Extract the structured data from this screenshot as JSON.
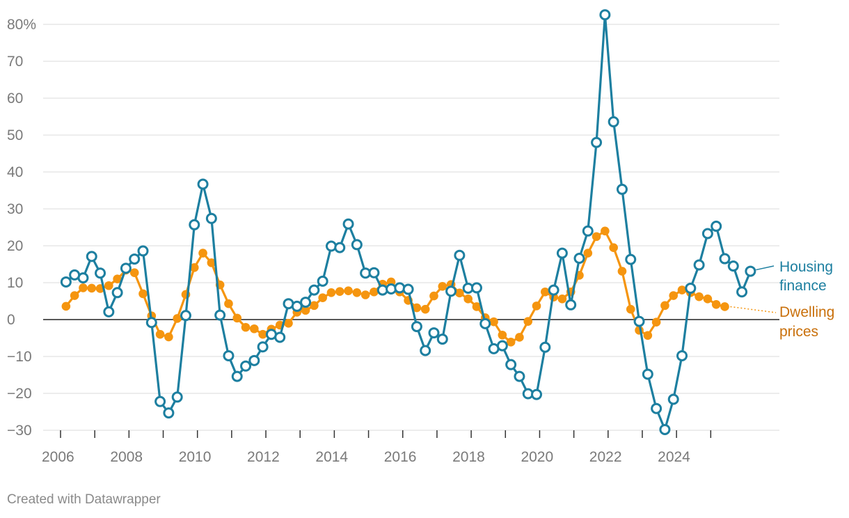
{
  "chart_data": {
    "type": "line",
    "title": "",
    "xlabel": "",
    "ylabel": "",
    "ylim": [
      -30,
      80
    ],
    "xlim": [
      2006,
      2026.6
    ],
    "y_ticks": [
      80,
      70,
      60,
      50,
      40,
      30,
      20,
      10,
      0,
      -10,
      -20,
      -30
    ],
    "y_tick_labels": [
      "80%",
      "70",
      "60",
      "50",
      "40",
      "30",
      "20",
      "10",
      "0",
      "−10",
      "−20",
      "−30"
    ],
    "x_tick_positions": [
      2006,
      2007,
      2008,
      2009,
      2010,
      2011,
      2012,
      2013,
      2014,
      2015,
      2016,
      2017,
      2018,
      2019,
      2020,
      2021,
      2022,
      2023,
      2024,
      2025
    ],
    "x_tick_labels": [
      "2006",
      "2008",
      "2010",
      "2012",
      "2014",
      "2016",
      "2018",
      "2020",
      "2022",
      "2024"
    ],
    "x_tick_label_years": [
      2006,
      2008,
      2010,
      2012,
      2014,
      2016,
      2018,
      2020,
      2022,
      2024
    ],
    "grid": true,
    "series": [
      {
        "name": "Housing finance",
        "label_lines": [
          "Housing",
          "finance"
        ],
        "color": "#1d7fa0",
        "marker": "hollow-circle",
        "x": [
          2006.16,
          2006.41,
          2006.66,
          2006.91,
          2007.16,
          2007.41,
          2007.66,
          2007.91,
          2008.16,
          2008.41,
          2008.66,
          2008.91,
          2009.16,
          2009.41,
          2009.66,
          2009.91,
          2010.16,
          2010.41,
          2010.66,
          2010.91,
          2011.16,
          2011.41,
          2011.66,
          2011.91,
          2012.16,
          2012.41,
          2012.66,
          2012.91,
          2013.16,
          2013.41,
          2013.66,
          2013.91,
          2014.16,
          2014.41,
          2014.66,
          2014.91,
          2015.16,
          2015.41,
          2015.66,
          2015.91,
          2016.16,
          2016.41,
          2016.66,
          2016.91,
          2017.16,
          2017.41,
          2017.66,
          2017.91,
          2018.16,
          2018.41,
          2018.66,
          2018.91,
          2019.16,
          2019.41,
          2019.66,
          2019.91,
          2020.16,
          2020.41,
          2020.66,
          2020.91,
          2021.16,
          2021.41,
          2021.66,
          2021.91,
          2022.16,
          2022.41,
          2022.66,
          2022.91,
          2023.16,
          2023.41,
          2023.66,
          2023.91,
          2024.16,
          2024.41,
          2024.66,
          2024.91,
          2025.16,
          2025.41,
          2025.66,
          2025.91,
          2026.16
        ],
        "values": [
          10.2,
          12.1,
          11.3,
          17.1,
          12.6,
          2.1,
          7.3,
          13.9,
          16.4,
          18.6,
          -0.8,
          -22.2,
          -25.3,
          -21.0,
          1.1,
          25.7,
          36.7,
          27.4,
          1.2,
          -9.8,
          -15.4,
          -12.6,
          -11.1,
          -7.4,
          -4.0,
          -4.8,
          4.3,
          3.6,
          4.7,
          8.0,
          10.4,
          19.9,
          19.5,
          25.9,
          20.3,
          12.6,
          12.7,
          8.0,
          8.3,
          8.6,
          8.2,
          -1.9,
          -8.4,
          -3.6,
          -5.3,
          7.7,
          17.4,
          8.5,
          8.6,
          -1.1,
          -7.9,
          -7.1,
          -12.2,
          -15.4,
          -20.1,
          -20.3,
          -7.5,
          8.0,
          18.0,
          4.0,
          16.6,
          24.0,
          48.0,
          82.6,
          53.6,
          35.3,
          16.3,
          -0.5,
          -14.8,
          -24.1,
          -29.8,
          -21.6,
          -9.8,
          8.5,
          14.8,
          23.3,
          25.3,
          16.5,
          14.5,
          7.5,
          13.1
        ]
      },
      {
        "name": "Dwelling prices",
        "label_lines": [
          "Dwelling",
          "prices"
        ],
        "color": "#f5950f",
        "label_color": "#c9700b",
        "marker": "filled-circle",
        "x": [
          2006.16,
          2006.41,
          2006.66,
          2006.91,
          2007.16,
          2007.41,
          2007.66,
          2007.91,
          2008.16,
          2008.41,
          2008.66,
          2008.91,
          2009.16,
          2009.41,
          2009.66,
          2009.91,
          2010.16,
          2010.41,
          2010.66,
          2010.91,
          2011.16,
          2011.41,
          2011.66,
          2011.91,
          2012.16,
          2012.41,
          2012.66,
          2012.91,
          2013.16,
          2013.41,
          2013.66,
          2013.91,
          2014.16,
          2014.41,
          2014.66,
          2014.91,
          2015.16,
          2015.41,
          2015.66,
          2015.91,
          2016.16,
          2016.41,
          2016.66,
          2016.91,
          2017.16,
          2017.41,
          2017.66,
          2017.91,
          2018.16,
          2018.41,
          2018.66,
          2018.91,
          2019.16,
          2019.41,
          2019.66,
          2019.91,
          2020.16,
          2020.41,
          2020.66,
          2020.91,
          2021.16,
          2021.41,
          2021.66,
          2021.91,
          2022.16,
          2022.41,
          2022.66,
          2022.91,
          2023.16,
          2023.41,
          2023.66,
          2023.91,
          2024.16,
          2024.41,
          2024.66,
          2024.91,
          2025.16,
          2025.41
        ],
        "values": [
          3.6,
          6.5,
          8.6,
          8.5,
          8.4,
          9.2,
          11.0,
          13.4,
          12.7,
          7.0,
          1.0,
          -4.0,
          -4.7,
          0.3,
          6.8,
          14.1,
          18.0,
          15.4,
          9.4,
          4.3,
          0.4,
          -2.1,
          -2.5,
          -4.0,
          -2.6,
          -1.5,
          -1.0,
          2.0,
          2.5,
          3.8,
          5.9,
          7.3,
          7.6,
          7.8,
          7.3,
          6.7,
          7.5,
          9.6,
          10.2,
          7.5,
          5.2,
          3.2,
          2.8,
          6.4,
          9.0,
          9.5,
          7.2,
          5.6,
          3.5,
          0.5,
          -0.6,
          -4.2,
          -6.1,
          -4.8,
          -0.5,
          3.7,
          7.5,
          6.1,
          5.6,
          7.5,
          12.0,
          18.0,
          22.5,
          24.0,
          19.5,
          13.1,
          2.8,
          -2.9,
          -4.3,
          -0.7,
          3.8,
          6.5,
          8.0,
          7.3,
          6.2,
          5.6,
          4.1,
          3.5
        ]
      }
    ]
  },
  "footer": {
    "credit": "Created with Datawrapper"
  }
}
